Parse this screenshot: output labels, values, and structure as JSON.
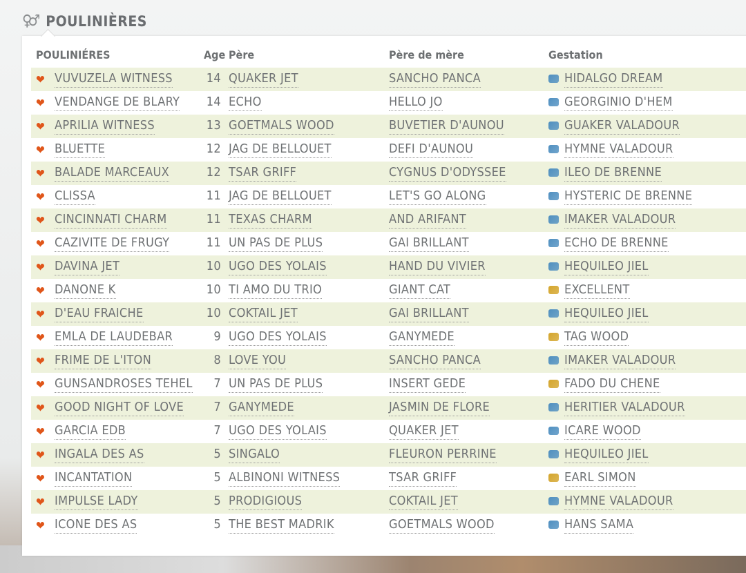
{
  "section_title": "POULINIÈRES",
  "columns": {
    "name": "POULINIÉRES",
    "age": "Age",
    "pere": "Père",
    "pere_de_mere": "Père de mère",
    "gestation": "Gestation"
  },
  "colors": {
    "row_alt": "#eef2dc",
    "heart": "#e0561a",
    "male_icon": "#4f8fc0",
    "female_icon": "#d4a52c"
  },
  "rows": [
    {
      "name": "VUVUZELA WITNESS",
      "age": "14",
      "pere": "QUAKER JET",
      "pdm": "SANCHO PANCA",
      "gestation": "HIDALGO DREAM",
      "sex": "male"
    },
    {
      "name": "VENDANGE DE BLARY",
      "age": "14",
      "pere": "ECHO",
      "pdm": "HELLO JO",
      "gestation": "GEORGINIO D'HEM",
      "sex": "male"
    },
    {
      "name": "APRILIA WITNESS",
      "age": "13",
      "pere": "GOETMALS WOOD",
      "pdm": "BUVETIER D'AUNOU",
      "gestation": "GUAKER VALADOUR",
      "sex": "male"
    },
    {
      "name": "BLUETTE",
      "age": "12",
      "pere": "JAG DE BELLOUET",
      "pdm": "DEFI D'AUNOU",
      "gestation": "HYMNE VALADOUR",
      "sex": "male"
    },
    {
      "name": "BALADE MARCEAUX",
      "age": "12",
      "pere": "TSAR GRIFF",
      "pdm": "CYGNUS D'ODYSSEE",
      "gestation": "ILEO DE BRENNE",
      "sex": "male"
    },
    {
      "name": "CLISSA",
      "age": "11",
      "pere": "JAG DE BELLOUET",
      "pdm": "LET'S GO ALONG",
      "gestation": "HYSTERIC DE BRENNE",
      "sex": "male"
    },
    {
      "name": "CINCINNATI CHARM",
      "age": "11",
      "pere": "TEXAS CHARM",
      "pdm": "AND ARIFANT",
      "gestation": "IMAKER VALADOUR",
      "sex": "male"
    },
    {
      "name": "CAZIVITE DE FRUGY",
      "age": "11",
      "pere": "UN PAS DE PLUS",
      "pdm": "GAI BRILLANT",
      "gestation": "ECHO DE BRENNE",
      "sex": "male"
    },
    {
      "name": "DAVINA JET",
      "age": "10",
      "pere": "UGO DES YOLAIS",
      "pdm": "HAND DU VIVIER",
      "gestation": "HEQUILEO JIEL",
      "sex": "male"
    },
    {
      "name": "DANONE K",
      "age": "10",
      "pere": "TI AMO DU TRIO",
      "pdm": "GIANT CAT",
      "gestation": "EXCELLENT",
      "sex": "female"
    },
    {
      "name": "D'EAU FRAICHE",
      "age": "10",
      "pere": "COKTAIL JET",
      "pdm": "GAI BRILLANT",
      "gestation": "HEQUILEO JIEL",
      "sex": "male"
    },
    {
      "name": "EMLA DE LAUDEBAR",
      "age": "9",
      "pere": "UGO DES YOLAIS",
      "pdm": "GANYMEDE",
      "gestation": "TAG WOOD",
      "sex": "female"
    },
    {
      "name": "FRIME DE L'ITON",
      "age": "8",
      "pere": "LOVE YOU",
      "pdm": "SANCHO PANCA",
      "gestation": "IMAKER VALADOUR",
      "sex": "male"
    },
    {
      "name": "GUNSANDROSES TEHEL",
      "age": "7",
      "pere": "UN PAS DE PLUS",
      "pdm": "INSERT GEDE",
      "gestation": "FADO DU CHENE",
      "sex": "female"
    },
    {
      "name": "GOOD NIGHT OF LOVE",
      "age": "7",
      "pere": "GANYMEDE",
      "pdm": "JASMIN DE FLORE",
      "gestation": "HERITIER VALADOUR",
      "sex": "male"
    },
    {
      "name": "GARCIA EDB",
      "age": "7",
      "pere": "UGO DES YOLAIS",
      "pdm": "QUAKER JET",
      "gestation": "ICARE WOOD",
      "sex": "male"
    },
    {
      "name": "INGALA DES AS",
      "age": "5",
      "pere": "SINGALO",
      "pdm": "FLEURON PERRINE",
      "gestation": "HEQUILEO JIEL",
      "sex": "male"
    },
    {
      "name": "INCANTATION",
      "age": "5",
      "pere": "ALBINONI WITNESS",
      "pdm": "TSAR GRIFF",
      "gestation": "EARL SIMON",
      "sex": "female"
    },
    {
      "name": "IMPULSE LADY",
      "age": "5",
      "pere": "PRODIGIOUS",
      "pdm": "COKTAIL JET",
      "gestation": "HYMNE VALADOUR",
      "sex": "male"
    },
    {
      "name": "ICONE DES AS",
      "age": "5",
      "pere": "THE BEST MADRIK",
      "pdm": "GOETMALS WOOD",
      "gestation": "HANS SAMA",
      "sex": "male"
    }
  ]
}
